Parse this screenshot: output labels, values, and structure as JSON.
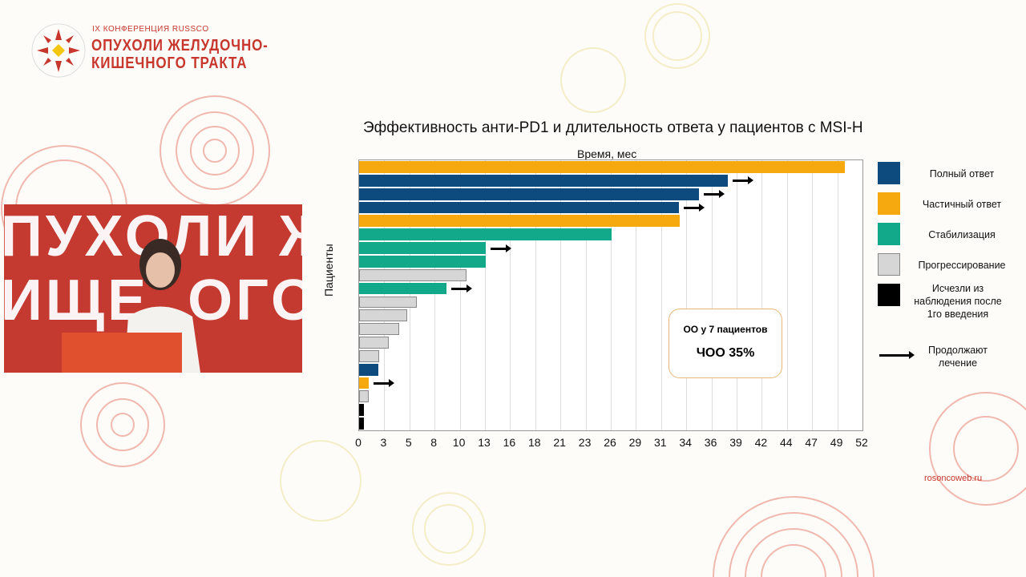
{
  "branding": {
    "conference": "IX КОНФЕРЕНЦИЯ RUSSCO",
    "title_line1": "ОПУХОЛИ ЖЕЛУДОЧНО-",
    "title_line2": "КИШЕЧНОГО ТРАКТА",
    "logo_text": "RUSSCO",
    "video_backdrop_text": "ПУХОЛИ Ж\nИЩЕ  ОГО",
    "website": "rosoncoweb.ru"
  },
  "chart_data": {
    "type": "bar",
    "orientation": "horizontal",
    "title": "Эффективность анти-PD1 и длительность ответа у пациентов с MSI-H",
    "xlabel": "Время, мес",
    "ylabel": "Пациенты",
    "xlim": [
      0,
      52
    ],
    "xticks": [
      "0",
      "3",
      "5",
      "8",
      "10",
      "13",
      "16",
      "18",
      "21",
      "23",
      "26",
      "29",
      "31",
      "34",
      "36",
      "39",
      "42",
      "44",
      "47",
      "49",
      "52"
    ],
    "grid": "vertical",
    "legend_placement": "right",
    "categories_legend": [
      {
        "key": "cr",
        "label": "Полный ответ",
        "color": "#0d4a7e"
      },
      {
        "key": "pr",
        "label": "Частичный ответ",
        "color": "#f5a90f"
      },
      {
        "key": "sd",
        "label": "Стабилизация",
        "color": "#12a98a"
      },
      {
        "key": "pd",
        "label": "Прогрессирование",
        "color": "#d6d6d6"
      },
      {
        "key": "lost",
        "label": "Исчезли из наблюдения после 1го введения",
        "color": "#000000"
      }
    ],
    "arrow_legend": "Продолжают лечение",
    "bars": [
      {
        "value": 50.2,
        "response": "pr",
        "ongoing": false
      },
      {
        "value": 38.1,
        "response": "cr",
        "ongoing": true
      },
      {
        "value": 35.1,
        "response": "cr",
        "ongoing": true
      },
      {
        "value": 33.0,
        "response": "cr",
        "ongoing": true
      },
      {
        "value": 33.1,
        "response": "pr",
        "ongoing": false
      },
      {
        "value": 26.1,
        "response": "sd",
        "ongoing": false
      },
      {
        "value": 13.1,
        "response": "sd",
        "ongoing": true
      },
      {
        "value": 13.1,
        "response": "sd",
        "ongoing": false
      },
      {
        "value": 11.1,
        "response": "pd",
        "ongoing": false
      },
      {
        "value": 9.0,
        "response": "sd",
        "ongoing": true
      },
      {
        "value": 6.0,
        "response": "pd",
        "ongoing": false
      },
      {
        "value": 5.0,
        "response": "pd",
        "ongoing": false
      },
      {
        "value": 4.1,
        "response": "pd",
        "ongoing": false
      },
      {
        "value": 3.1,
        "response": "pd",
        "ongoing": false
      },
      {
        "value": 2.1,
        "response": "pd",
        "ongoing": false
      },
      {
        "value": 2.0,
        "response": "cr",
        "ongoing": false
      },
      {
        "value": 1.0,
        "response": "pr",
        "ongoing": true
      },
      {
        "value": 1.0,
        "response": "pd",
        "ongoing": false
      },
      {
        "value": 0.5,
        "response": "lost",
        "ongoing": false
      },
      {
        "value": 0.5,
        "response": "lost",
        "ongoing": false
      }
    ],
    "annotation": {
      "line1": "ОО у 7 пациентов",
      "line2": "ЧОО 35%"
    }
  }
}
